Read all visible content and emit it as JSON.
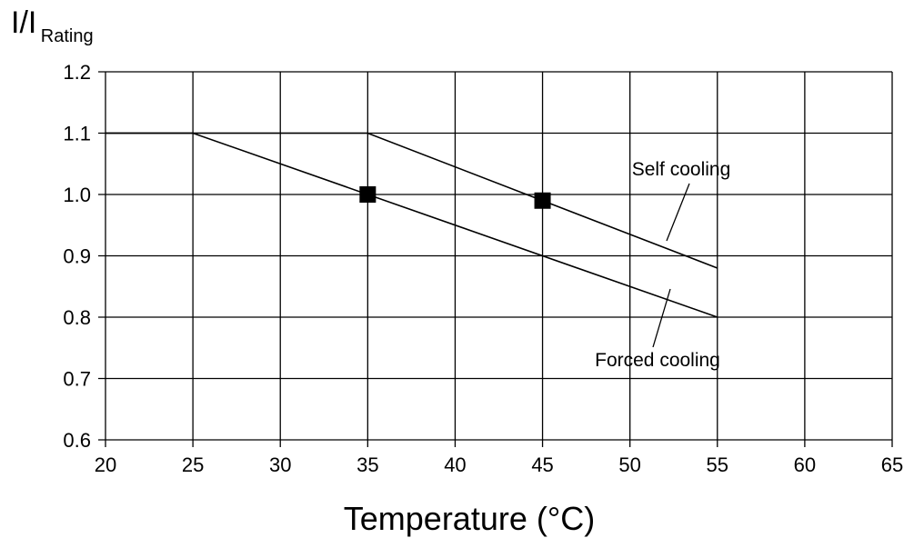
{
  "chart_data": {
    "type": "line",
    "title": "",
    "xlabel": "Temperature (°C)",
    "ylabel": {
      "main": "I/I",
      "sub": "Rating"
    },
    "xlim": [
      20,
      65
    ],
    "ylim": [
      0.6,
      1.2
    ],
    "x_ticks": [
      "20",
      "25",
      "30",
      "35",
      "40",
      "45",
      "50",
      "55",
      "60",
      "65"
    ],
    "y_ticks": [
      "0.6",
      "0.7",
      "0.8",
      "0.9",
      "1.0",
      "1.1",
      "1.2"
    ],
    "grid": true,
    "series": [
      {
        "name": "Self cooling",
        "points": [
          [
            20,
            1.1
          ],
          [
            35,
            1.1
          ],
          [
            55,
            0.88
          ]
        ],
        "marker": {
          "x": 45,
          "y": 0.99
        }
      },
      {
        "name": "Forced cooling",
        "points": [
          [
            20,
            1.1
          ],
          [
            25,
            1.1
          ],
          [
            55,
            0.8
          ]
        ],
        "marker": {
          "x": 35,
          "y": 1.0
        }
      }
    ]
  }
}
